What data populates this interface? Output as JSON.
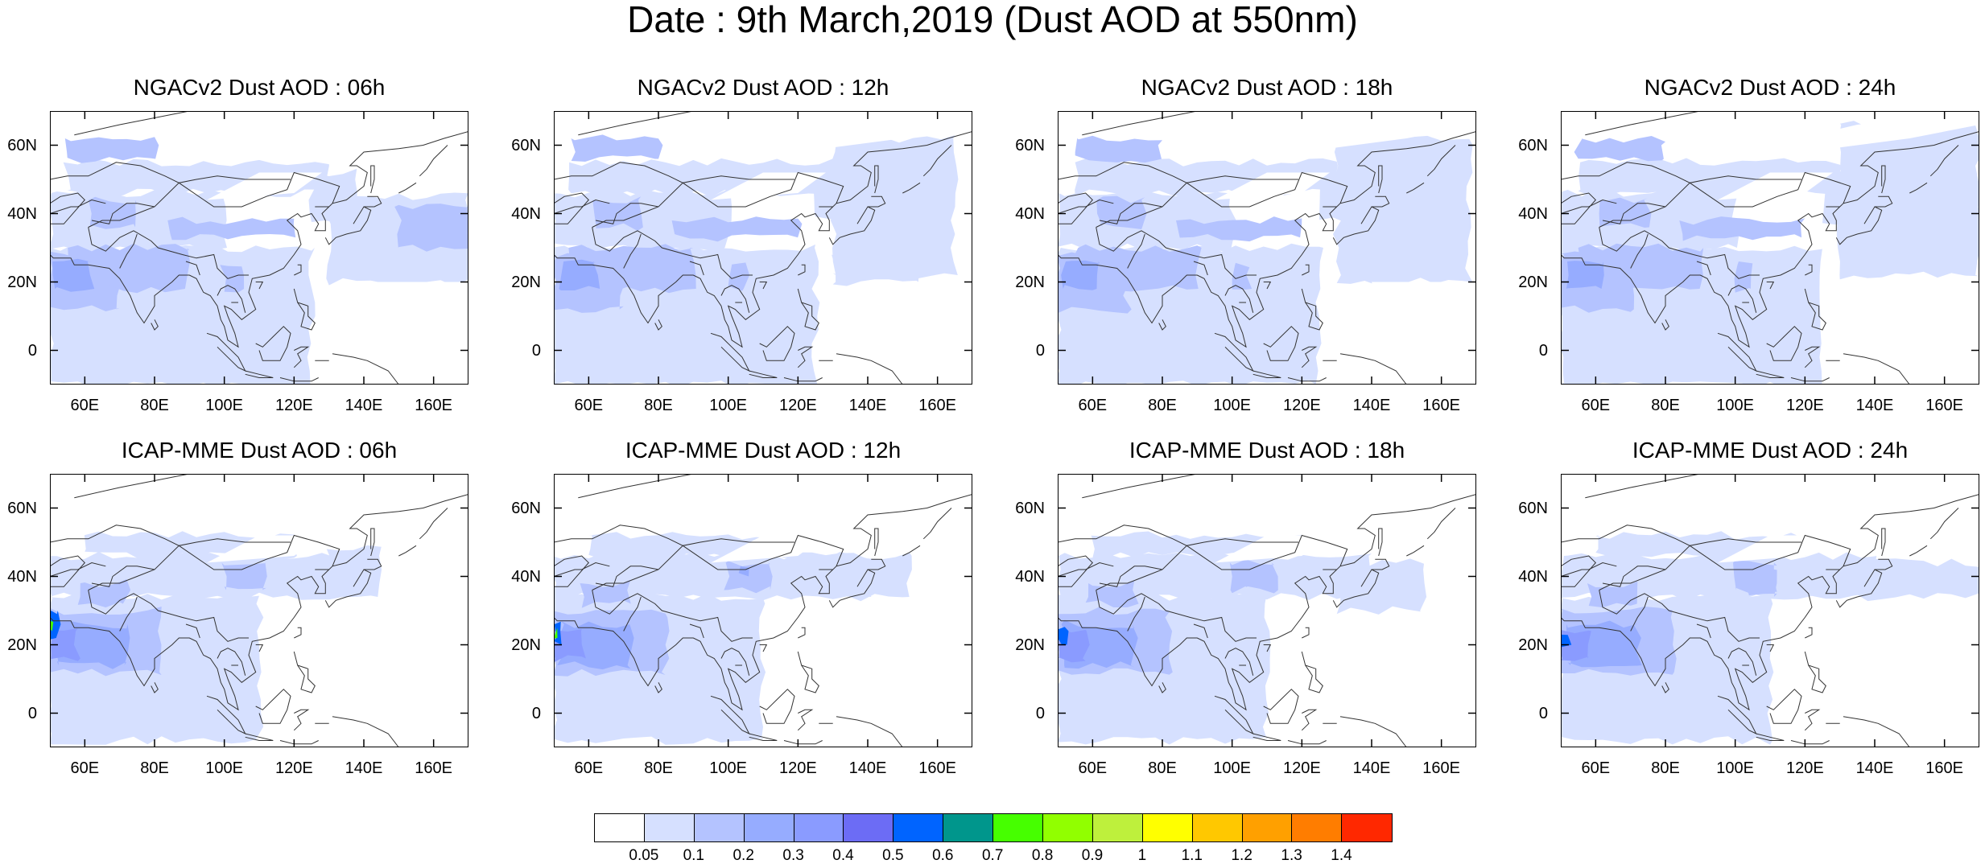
{
  "title": "Date : 9th March,2019 (Dust AOD at 550nm)",
  "map_extent": {
    "lon": [
      50,
      170
    ],
    "lat": [
      -10,
      70
    ]
  },
  "x_ticks": [
    "60E",
    "80E",
    "100E",
    "120E",
    "140E",
    "160E"
  ],
  "y_ticks": [
    "60N",
    "40N",
    "20N",
    "0"
  ],
  "panels": [
    {
      "title": "NGACv2 Dust AOD : 06h",
      "model": "ngac",
      "hour": 6
    },
    {
      "title": "NGACv2 Dust AOD : 12h",
      "model": "ngac",
      "hour": 12
    },
    {
      "title": "NGACv2 Dust AOD : 18h",
      "model": "ngac",
      "hour": 18
    },
    {
      "title": "NGACv2 Dust AOD : 24h",
      "model": "ngac",
      "hour": 24
    },
    {
      "title": "ICAP-MME Dust AOD : 06h",
      "model": "icap",
      "hour": 6
    },
    {
      "title": "ICAP-MME Dust AOD : 12h",
      "model": "icap",
      "hour": 12
    },
    {
      "title": "ICAP-MME Dust AOD : 18h",
      "model": "icap",
      "hour": 18
    },
    {
      "title": "ICAP-MME Dust AOD : 24h",
      "model": "icap",
      "hour": 24
    }
  ],
  "colorbar": {
    "colors": [
      "#ffffff",
      "#d6e0ff",
      "#b4c3ff",
      "#96acff",
      "#8a9bff",
      "#6c6cf5",
      "#0064ff",
      "#00968c",
      "#46ff00",
      "#91ff00",
      "#bef03c",
      "#ffff00",
      "#ffc800",
      "#ffa000",
      "#ff7d00",
      "#ff2800"
    ],
    "labels": [
      "0.05",
      "0.1",
      "0.2",
      "0.3",
      "0.4",
      "0.5",
      "0.6",
      "0.7",
      "0.8",
      "0.9",
      "1",
      "1.1",
      "1.2",
      "1.3",
      "1.4"
    ]
  }
}
